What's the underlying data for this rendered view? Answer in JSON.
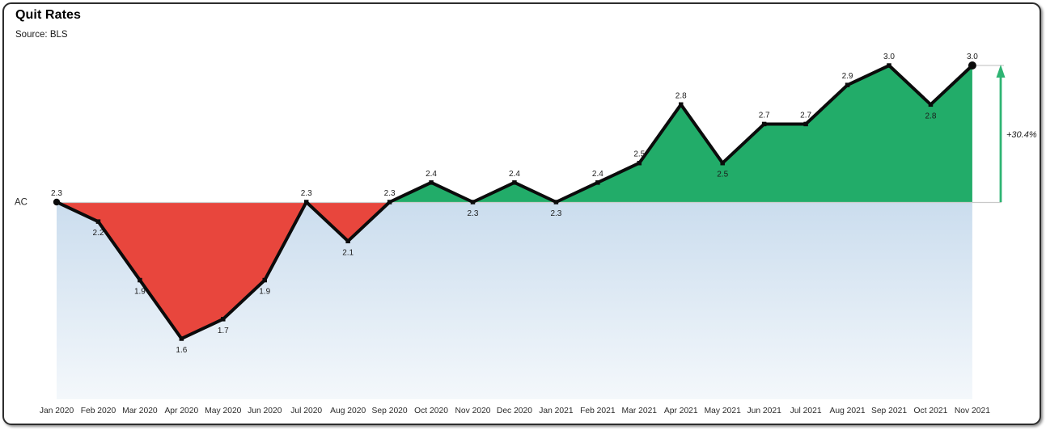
{
  "chart_data": {
    "type": "area",
    "title": "Quit Rates",
    "source": "Source: BLS",
    "series_label": "AC",
    "categories": [
      "Jan 2020",
      "Feb 2020",
      "Mar 2020",
      "Apr 2020",
      "May 2020",
      "Jun 2020",
      "Jul 2020",
      "Aug 2020",
      "Sep 2020",
      "Oct 2020",
      "Nov 2020",
      "Dec 2020",
      "Jan 2021",
      "Feb 2021",
      "Mar 2021",
      "Apr 2021",
      "May 2021",
      "Jun 2021",
      "Jul 2021",
      "Aug 2021",
      "Sep 2021",
      "Oct 2021",
      "Nov 2021"
    ],
    "values": [
      2.3,
      2.2,
      1.9,
      1.6,
      1.7,
      1.9,
      2.3,
      2.1,
      2.3,
      2.4,
      2.3,
      2.4,
      2.3,
      2.4,
      2.5,
      2.8,
      2.5,
      2.7,
      2.7,
      2.9,
      3.0,
      2.8,
      3.0
    ],
    "baseline": 2.3,
    "value_decimals": 1,
    "value_label_positions": [
      "above",
      "below",
      "below",
      "below",
      "below",
      "below",
      "above",
      "below",
      "above",
      "above",
      "below",
      "above",
      "below",
      "above",
      "above",
      "above",
      "below",
      "above",
      "above",
      "above",
      "above",
      "below",
      "above"
    ],
    "annotation": {
      "text": "+30.4%"
    },
    "grid": "off",
    "y_axis": "hidden",
    "legend": "none",
    "colors": {
      "positive_fill": "#22AC69",
      "negative_fill": "#E8463D",
      "under_fill_top": "#CBDDEE",
      "under_fill_bottom": "#FFFFFF",
      "line": "#0b0b0b",
      "baseline_line": "#CDCDCD",
      "bracket_line": "#C9C9C9",
      "arrow": "#2EB473",
      "label_text": "#1b1b1b",
      "axis_text": "#2a2a2a"
    }
  }
}
